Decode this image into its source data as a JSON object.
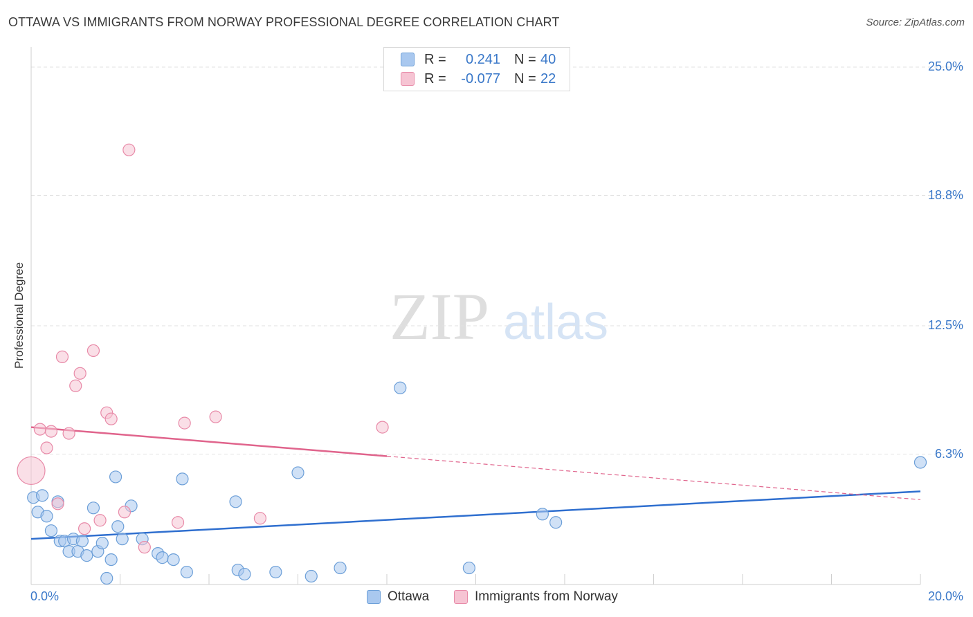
{
  "title": "OTTAWA VS IMMIGRANTS FROM NORWAY PROFESSIONAL DEGREE CORRELATION CHART",
  "source": "Source: ZipAtlas.com",
  "watermark": {
    "zip": "ZIP",
    "atlas": "atlas"
  },
  "legend": {
    "r_label": "R =",
    "n_label": "N =",
    "rows": [
      {
        "name": "Ottawa",
        "r": "0.241",
        "n": "40",
        "color": "#a9c8ef",
        "stroke": "#6c9fd8"
      },
      {
        "name": "Immigrants from Norway",
        "r": "-0.077",
        "n": "22",
        "color": "#f6c4d3",
        "stroke": "#e88aa8"
      }
    ]
  },
  "chart_data": {
    "type": "scatter",
    "title": "OTTAWA VS IMMIGRANTS FROM NORWAY PROFESSIONAL DEGREE CORRELATION CHART",
    "xlabel": "",
    "ylabel": "Professional Degree",
    "xlim": [
      0,
      20
    ],
    "ylim": [
      0,
      25
    ],
    "x_tick_labels": [
      "0.0%",
      "20.0%"
    ],
    "y_ticks": [
      6.3,
      12.5,
      18.8,
      25.0
    ],
    "y_tick_labels": [
      "6.3%",
      "12.5%",
      "18.8%",
      "25.0%"
    ],
    "grid": true,
    "series": [
      {
        "name": "Ottawa",
        "color": "#a9c8ef",
        "stroke": "#6c9fd8",
        "line_color": "#2f6fcf",
        "trend": {
          "x0": 0,
          "y0": 2.2,
          "x1": 20,
          "y1": 4.5,
          "solid_until": 20
        },
        "points": [
          [
            0.05,
            4.2
          ],
          [
            0.25,
            4.3
          ],
          [
            0.15,
            3.5
          ],
          [
            0.35,
            3.3
          ],
          [
            0.45,
            2.6
          ],
          [
            0.6,
            4.0
          ],
          [
            0.65,
            2.1
          ],
          [
            0.75,
            2.1
          ],
          [
            0.85,
            1.6
          ],
          [
            0.95,
            2.2
          ],
          [
            1.05,
            1.6
          ],
          [
            1.15,
            2.1
          ],
          [
            1.25,
            1.4
          ],
          [
            1.4,
            3.7
          ],
          [
            1.5,
            1.6
          ],
          [
            1.6,
            2.0
          ],
          [
            1.7,
            0.3
          ],
          [
            1.8,
            1.2
          ],
          [
            1.9,
            5.2
          ],
          [
            1.95,
            2.8
          ],
          [
            2.05,
            2.2
          ],
          [
            2.25,
            3.8
          ],
          [
            2.5,
            2.2
          ],
          [
            2.85,
            1.5
          ],
          [
            2.95,
            1.3
          ],
          [
            3.2,
            1.2
          ],
          [
            3.4,
            5.1
          ],
          [
            3.5,
            0.6
          ],
          [
            4.6,
            4.0
          ],
          [
            4.65,
            0.7
          ],
          [
            4.8,
            0.5
          ],
          [
            5.5,
            0.6
          ],
          [
            6.0,
            5.4
          ],
          [
            6.3,
            0.4
          ],
          [
            6.95,
            0.8
          ],
          [
            8.3,
            9.5
          ],
          [
            9.85,
            0.8
          ],
          [
            11.5,
            3.4
          ],
          [
            11.8,
            3.0
          ],
          [
            20.0,
            5.9
          ]
        ]
      },
      {
        "name": "Immigrants from Norway",
        "color": "#f6c4d3",
        "stroke": "#e88aa8",
        "line_color": "#e0648c",
        "trend": {
          "x0": 0,
          "y0": 7.6,
          "x1": 20,
          "y1": 4.1,
          "solid_until": 8.0
        },
        "points": [
          [
            0.0,
            5.5
          ],
          [
            0.2,
            7.5
          ],
          [
            0.35,
            6.6
          ],
          [
            0.45,
            7.4
          ],
          [
            0.6,
            3.9
          ],
          [
            0.7,
            11.0
          ],
          [
            0.85,
            7.3
          ],
          [
            1.0,
            9.6
          ],
          [
            1.1,
            10.2
          ],
          [
            1.2,
            2.7
          ],
          [
            1.4,
            11.3
          ],
          [
            1.55,
            3.1
          ],
          [
            1.7,
            8.3
          ],
          [
            1.8,
            8.0
          ],
          [
            2.1,
            3.5
          ],
          [
            2.2,
            21.0
          ],
          [
            2.55,
            1.8
          ],
          [
            3.3,
            3.0
          ],
          [
            3.45,
            7.8
          ],
          [
            4.15,
            8.1
          ],
          [
            5.15,
            3.2
          ],
          [
            7.9,
            7.6
          ]
        ]
      }
    ]
  }
}
